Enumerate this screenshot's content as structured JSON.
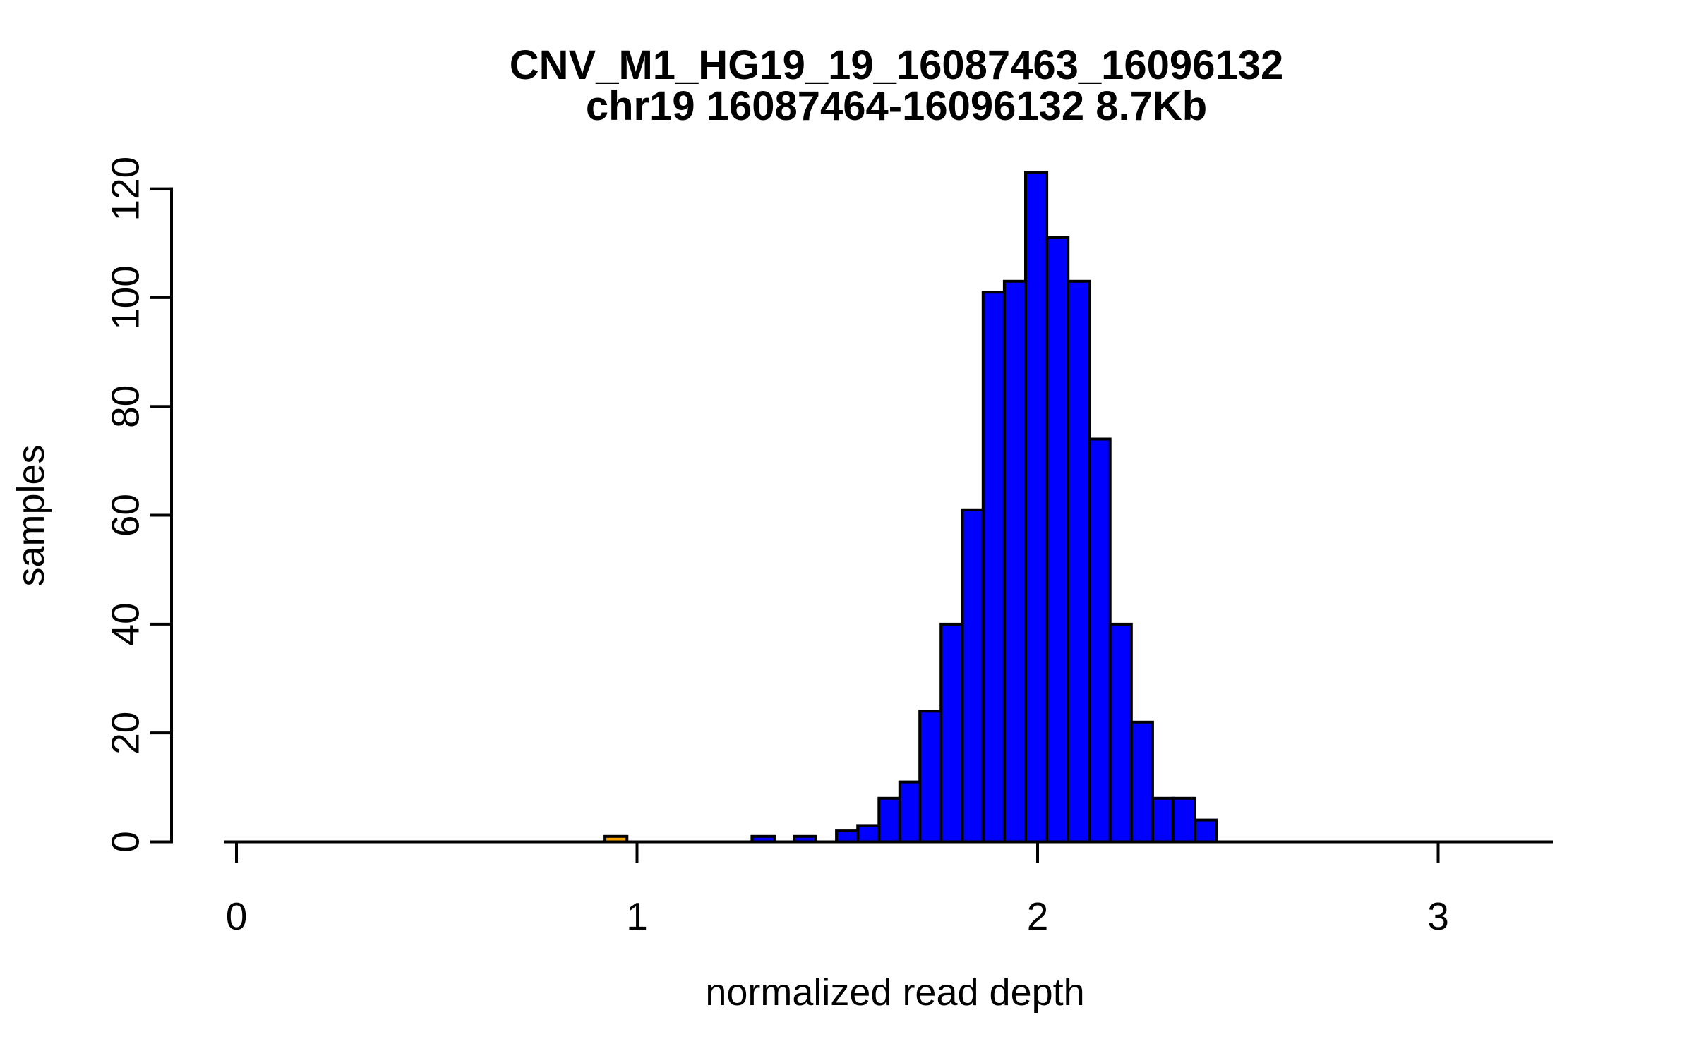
{
  "figure": {
    "background_color": "#FFFFFF",
    "title": "CNV_M1_HG19_19_16087463_16096132",
    "subtitle": "chr19 16087464-16096132 8.7Kb"
  },
  "chart_data": {
    "type": "bar",
    "title": "CNV_M1_HG19_19_16087463_16096132",
    "subtitle": "chr19 16087464-16096132 8.7Kb",
    "xlabel": "normalized read depth",
    "ylabel": "samples",
    "x_ticks": [
      0,
      1,
      2,
      3
    ],
    "y_ticks": [
      0,
      20,
      40,
      60,
      80,
      100,
      120
    ],
    "xlim": [
      -0.03,
      3.28
    ],
    "ylim": [
      0,
      123
    ],
    "grid": "off",
    "legend": "none",
    "bar_colors": {
      "default": "#0000FF",
      "highlight": "#FFA500",
      "border": "#000000"
    },
    "bins": [
      {
        "x0": 0.92,
        "x1": 0.975,
        "count": 1,
        "color": "highlight"
      },
      {
        "x0": 1.287,
        "x1": 1.343,
        "count": 1
      },
      {
        "x0": 1.392,
        "x1": 1.445,
        "count": 1
      },
      {
        "x0": 1.498,
        "x1": 1.551,
        "count": 2
      },
      {
        "x0": 1.551,
        "x1": 1.604,
        "count": 3
      },
      {
        "x0": 1.604,
        "x1": 1.656,
        "count": 8
      },
      {
        "x0": 1.656,
        "x1": 1.706,
        "count": 11
      },
      {
        "x0": 1.706,
        "x1": 1.759,
        "count": 24
      },
      {
        "x0": 1.759,
        "x1": 1.812,
        "count": 40
      },
      {
        "x0": 1.812,
        "x1": 1.864,
        "count": 61
      },
      {
        "x0": 1.864,
        "x1": 1.917,
        "count": 101
      },
      {
        "x0": 1.917,
        "x1": 1.97,
        "count": 103
      },
      {
        "x0": 1.97,
        "x1": 2.023,
        "count": 123
      },
      {
        "x0": 2.023,
        "x1": 2.076,
        "count": 111
      },
      {
        "x0": 2.076,
        "x1": 2.129,
        "count": 103
      },
      {
        "x0": 2.129,
        "x1": 2.181,
        "count": 74
      },
      {
        "x0": 2.181,
        "x1": 2.234,
        "count": 40
      },
      {
        "x0": 2.234,
        "x1": 2.287,
        "count": 22
      },
      {
        "x0": 2.287,
        "x1": 2.338,
        "count": 8
      },
      {
        "x0": 2.338,
        "x1": 2.393,
        "count": 8
      },
      {
        "x0": 2.393,
        "x1": 2.446,
        "count": 4
      }
    ]
  }
}
